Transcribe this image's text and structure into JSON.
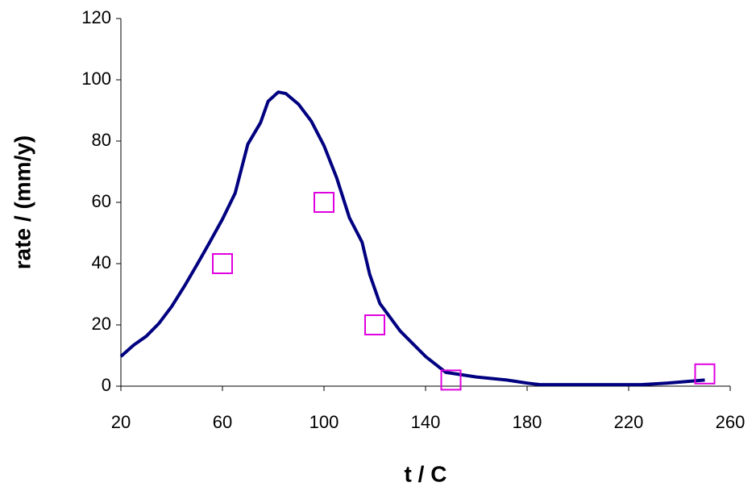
{
  "chart_data": {
    "type": "line",
    "xlabel": "t / C",
    "ylabel": "rate / (mm/y)",
    "xlim": [
      20,
      260
    ],
    "ylim": [
      0,
      120
    ],
    "xticks": [
      20,
      60,
      100,
      140,
      180,
      220,
      260
    ],
    "yticks": [
      0,
      20,
      40,
      60,
      80,
      100,
      120
    ],
    "grid": false,
    "series": [
      {
        "type": "line",
        "color": "#000080",
        "x": [
          20,
          25,
          30,
          35,
          40,
          45,
          50,
          55,
          60,
          65,
          70,
          75,
          78,
          82,
          85,
          90,
          95,
          100,
          105,
          110,
          115,
          118,
          122,
          130,
          140,
          148,
          160,
          172,
          180,
          185,
          200,
          225,
          235,
          250
        ],
        "values": [
          9.7,
          13.4,
          16.3,
          20.5,
          26,
          32.6,
          39.7,
          47,
          54.5,
          63,
          79,
          86,
          93,
          96,
          95.5,
          92,
          86.5,
          78.5,
          68,
          55,
          47,
          36.5,
          27,
          18,
          9.7,
          4.5,
          3,
          2,
          1,
          0.5,
          0.5,
          0.5,
          1,
          2
        ]
      },
      {
        "type": "scatter",
        "color": "#e000e0",
        "x": [
          60,
          100,
          120,
          150,
          250
        ],
        "values": [
          40,
          60,
          20,
          2,
          4
        ]
      }
    ]
  }
}
